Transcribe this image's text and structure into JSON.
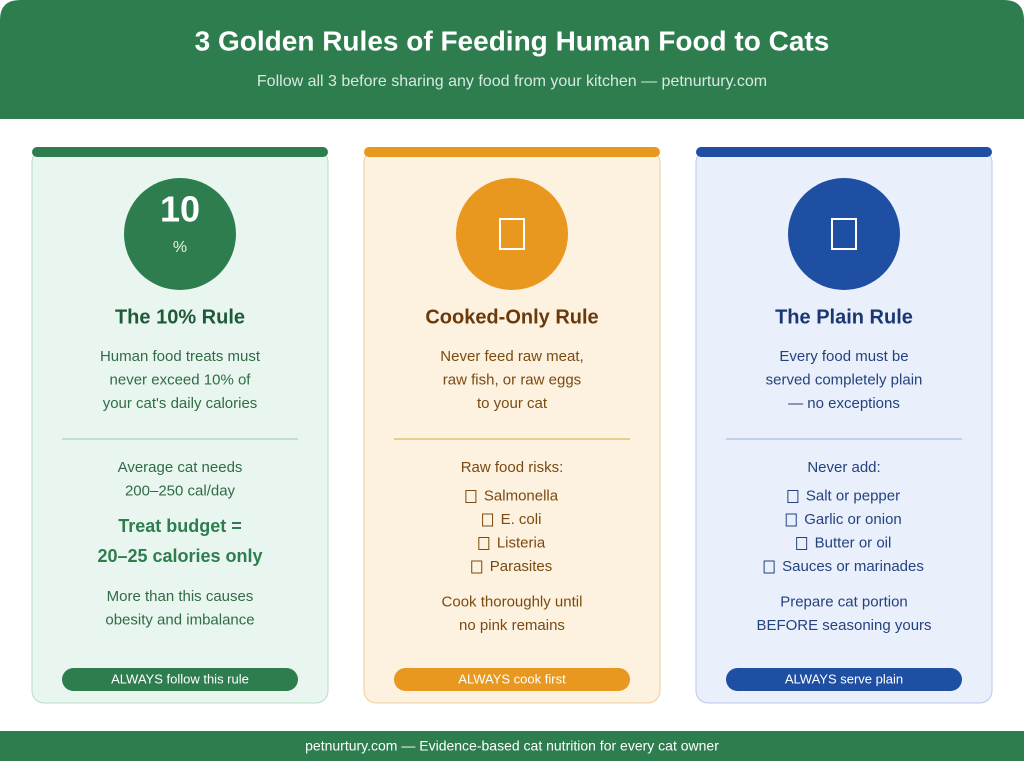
{
  "header": {
    "title": "3 Golden Rules of Feeding Human Food to Cats",
    "subtitle": "Follow all 3 before sharing any food from your kitchen — petnurtury.com"
  },
  "cards": [
    {
      "badge": {
        "number": "10",
        "unit": "%"
      },
      "title": "The 10% Rule",
      "description": [
        "Human food treats must",
        "never exceed 10% of",
        "your cat's daily calories"
      ],
      "intro": [
        "Average cat needs",
        "200–250 cal/day"
      ],
      "highlight": [
        "Treat budget =",
        "20–25 calories only"
      ],
      "note": [
        "More than this causes",
        "obesity and imbalance"
      ],
      "button": "ALWAYS follow this rule"
    },
    {
      "title": "Cooked-Only Rule",
      "description": [
        "Never feed raw meat,",
        "raw fish, or raw eggs",
        "to your cat"
      ],
      "intro": [
        "Raw food risks:"
      ],
      "list": [
        "Salmonella",
        "E. coli",
        "Listeria",
        "Parasites"
      ],
      "note": [
        "Cook thoroughly until",
        "no pink remains"
      ],
      "button": "ALWAYS cook first"
    },
    {
      "title": "The Plain Rule",
      "description": [
        "Every food must be",
        "served completely plain",
        "— no exceptions"
      ],
      "intro": [
        "Never add:"
      ],
      "list": [
        "Salt or pepper",
        "Garlic or onion",
        "Butter or oil",
        "Sauces or marinades"
      ],
      "note": [
        "Prepare cat portion",
        "BEFORE seasoning yours"
      ],
      "button": "ALWAYS serve plain"
    }
  ],
  "footer": "petnurtury.com — Evidence-based cat nutrition for every cat owner"
}
